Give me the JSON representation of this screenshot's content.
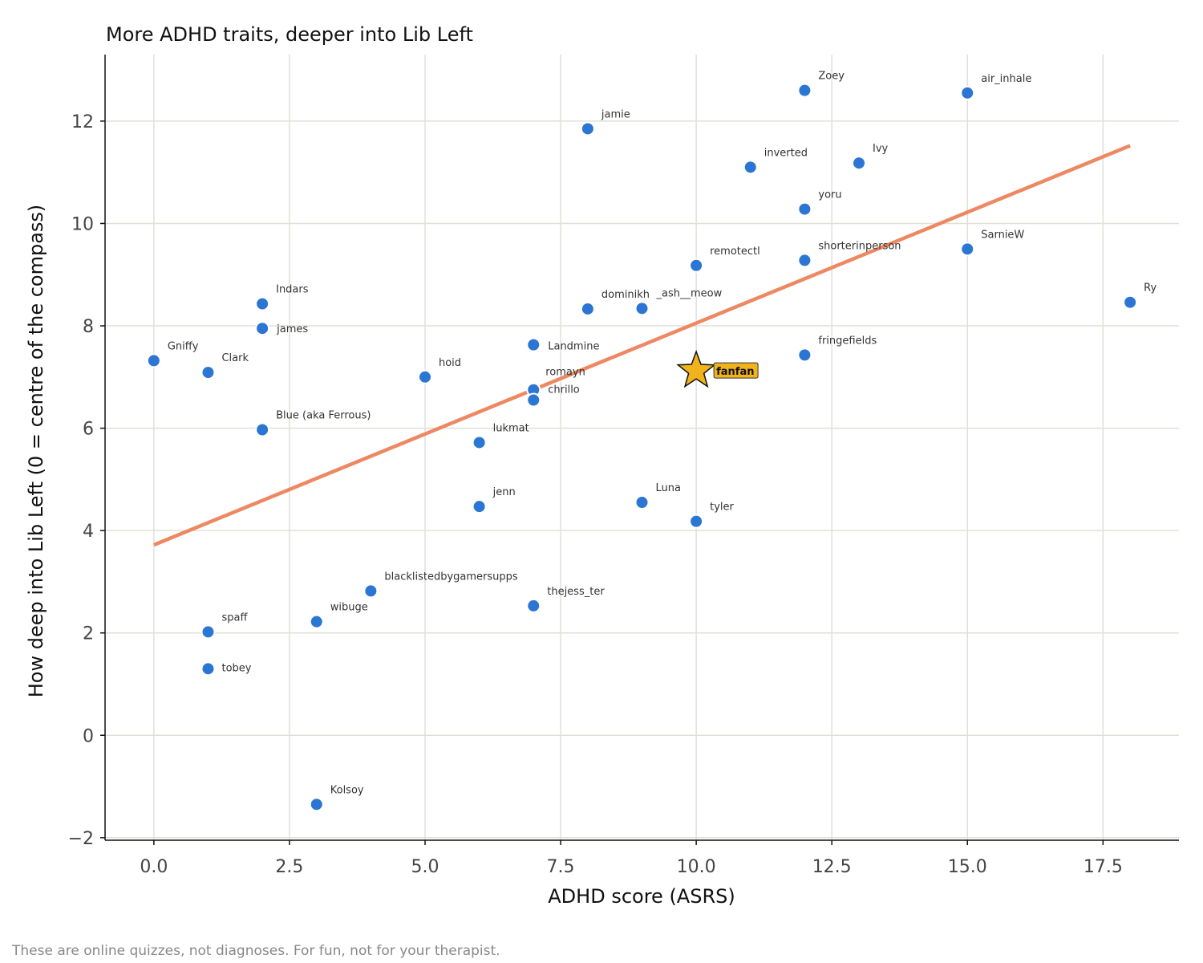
{
  "chart_data": {
    "type": "scatter",
    "title": "More ADHD traits, deeper into Lib Left",
    "xlabel": "ADHD score (ASRS)",
    "ylabel": "How deep into Lib Left (0 = centre of the compass)",
    "xlim": [
      -0.9,
      18.9
    ],
    "ylim": [
      -2.05,
      13.3
    ],
    "xticks": [
      0.0,
      2.5,
      5.0,
      7.5,
      10.0,
      12.5,
      15.0,
      17.5
    ],
    "xtick_labels": [
      "0.0",
      "2.5",
      "5.0",
      "7.5",
      "10.0",
      "12.5",
      "15.0",
      "17.5"
    ],
    "yticks": [
      -2,
      0,
      2,
      4,
      6,
      8,
      10,
      12
    ],
    "ytick_labels": [
      "−2",
      "0",
      "2",
      "4",
      "6",
      "8",
      "10",
      "12"
    ],
    "grid": true,
    "point_color": "#2a76d2",
    "trend_color": "#ee8862",
    "highlight_color": "#f0b21d",
    "trend_line": {
      "x": [
        0.0,
        18.0
      ],
      "y": [
        3.72,
        11.52
      ]
    },
    "points": [
      {
        "name": "Zoey",
        "x": 12,
        "y": 12.6
      },
      {
        "name": "air_inhale",
        "x": 15,
        "y": 12.55
      },
      {
        "name": "jamie",
        "x": 8,
        "y": 11.85
      },
      {
        "name": "inverted",
        "x": 11,
        "y": 11.1
      },
      {
        "name": "Ivy",
        "x": 13,
        "y": 11.18
      },
      {
        "name": "yoru",
        "x": 12,
        "y": 10.28
      },
      {
        "name": "SarnieW",
        "x": 15,
        "y": 9.5
      },
      {
        "name": "remotectl",
        "x": 10,
        "y": 9.18
      },
      {
        "name": "shorterinperson",
        "x": 12,
        "y": 9.28
      },
      {
        "name": "Ry",
        "x": 18,
        "y": 8.46
      },
      {
        "name": "Indars",
        "x": 2,
        "y": 8.43
      },
      {
        "name": "dominikh",
        "x": 8,
        "y": 8.33
      },
      {
        "name": "_ash__meow",
        "x": 9,
        "y": 8.34
      },
      {
        "name": "james",
        "x": 2,
        "y": 7.95
      },
      {
        "name": "Landmine",
        "x": 7,
        "y": 7.63
      },
      {
        "name": "fringefields",
        "x": 12,
        "y": 7.43
      },
      {
        "name": "Gniffy",
        "x": 0,
        "y": 7.32
      },
      {
        "name": "Clark",
        "x": 1,
        "y": 7.09
      },
      {
        "name": "hoid",
        "x": 5,
        "y": 7.0
      },
      {
        "name": "romayn",
        "x": 7,
        "y": 6.75
      },
      {
        "name": "chrillo",
        "x": 7,
        "y": 6.55
      },
      {
        "name": "Blue (aka Ferrous)",
        "x": 2,
        "y": 5.97
      },
      {
        "name": "lukmat",
        "x": 6,
        "y": 5.72
      },
      {
        "name": "jenn",
        "x": 6,
        "y": 4.47
      },
      {
        "name": "Luna",
        "x": 9,
        "y": 4.55
      },
      {
        "name": "tyler",
        "x": 10,
        "y": 4.18
      },
      {
        "name": "blacklistedbygamersupps",
        "x": 4,
        "y": 2.82
      },
      {
        "name": "thejess_ter",
        "x": 7,
        "y": 2.53
      },
      {
        "name": "wibuge",
        "x": 3,
        "y": 2.22
      },
      {
        "name": "spaff",
        "x": 1,
        "y": 2.02
      },
      {
        "name": "tobey",
        "x": 1,
        "y": 1.3
      },
      {
        "name": "Kolsoy",
        "x": 3,
        "y": -1.35
      }
    ],
    "highlight": {
      "name": "fanfan",
      "x": 10,
      "y": 7.12
    }
  },
  "footnote": "These are online quizzes, not diagnoses. For fun, not for your therapist."
}
